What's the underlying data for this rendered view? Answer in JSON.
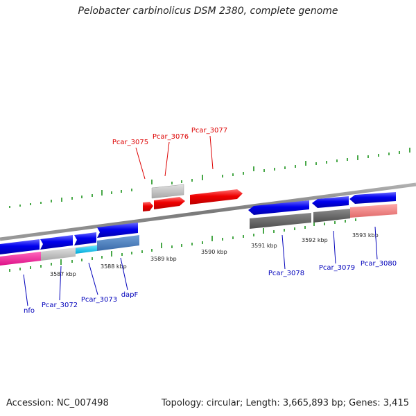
{
  "header": {
    "title": "Pelobacter carbinolicus DSM 2380, complete genome"
  },
  "footer": {
    "accession": "Accession: NC_007498",
    "summary": "Topology: circular; Length: 3,665,893 bp; Genes: 3,415"
  },
  "colors": {
    "forward_strand_label": "#dd0000",
    "reverse_strand_label": "#0000bb",
    "tick": "#0a8a0a",
    "axis": "#808080"
  },
  "kbp_labels": [
    "3587 kbp",
    "3588 kbp",
    "3589 kbp",
    "3590 kbp",
    "3591 kbp",
    "3592 kbp",
    "3593 kbp"
  ],
  "forward_genes": [
    {
      "name": "Pcar_3075"
    },
    {
      "name": "Pcar_3076"
    },
    {
      "name": "Pcar_3077"
    }
  ],
  "reverse_genes": [
    {
      "name": "nfo"
    },
    {
      "name": "Pcar_3072"
    },
    {
      "name": "Pcar_3073"
    },
    {
      "name": "dapF"
    },
    {
      "name": "Pcar_3078"
    },
    {
      "name": "Pcar_3079"
    },
    {
      "name": "Pcar_3080"
    }
  ]
}
